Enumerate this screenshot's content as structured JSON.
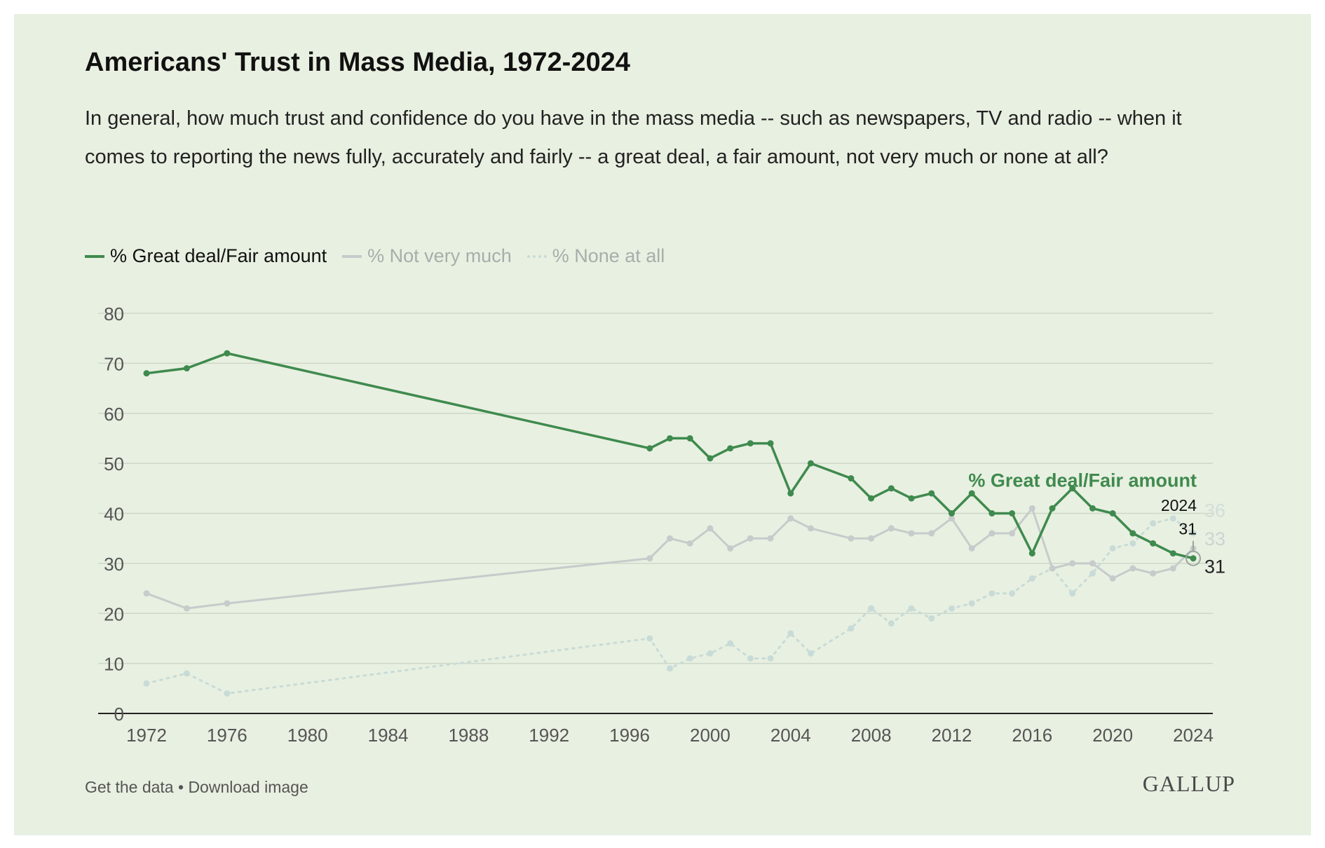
{
  "header": {
    "title": "Americans' Trust in Mass Media, 1972-2024",
    "subtitle": "In general, how much trust and confidence do you have in the mass media -- such as newspapers, TV and radio -- when it comes to reporting the news fully, accurately and fairly -- a great deal, a fair amount, not very much or none at all?"
  },
  "legend": {
    "items": [
      {
        "label": "% Great deal/Fair amount"
      },
      {
        "label": "% Not very much"
      },
      {
        "label": "% None at all"
      }
    ]
  },
  "footer": {
    "get_data": "Get the data",
    "separator": " • ",
    "download": "Download image",
    "logo": "GALLUP"
  },
  "colors": {
    "background": "#e8f0e1",
    "great_deal": "#3f8a4e",
    "not_very_much": "#c6cbcb",
    "none_at_all": "#c8dbd7",
    "grid": "#cdd7c8"
  },
  "chart_data": {
    "type": "line",
    "title": "Americans' Trust in Mass Media, 1972-2024",
    "xlim": [
      1972,
      2024
    ],
    "ylim": [
      0,
      80
    ],
    "x_ticks": [
      1972,
      1976,
      1980,
      1984,
      1988,
      1992,
      1996,
      2000,
      2004,
      2008,
      2012,
      2016,
      2020,
      2024
    ],
    "y_ticks": [
      0,
      10,
      20,
      30,
      40,
      50,
      60,
      70,
      80
    ],
    "grid": true,
    "legend": "top-left",
    "series": [
      {
        "name": "% Great deal/Fair amount",
        "style": "solid",
        "x": [
          1972,
          1974,
          1976,
          1997,
          1998,
          1999,
          2000,
          2001,
          2002,
          2003,
          2004,
          2005,
          2007,
          2008,
          2009,
          2010,
          2011,
          2012,
          2013,
          2014,
          2015,
          2016,
          2017,
          2018,
          2019,
          2020,
          2021,
          2022,
          2023,
          2024
        ],
        "values": [
          68,
          69,
          72,
          53,
          55,
          55,
          51,
          53,
          54,
          54,
          44,
          50,
          47,
          43,
          45,
          43,
          44,
          40,
          44,
          40,
          40,
          32,
          41,
          45,
          41,
          40,
          36,
          34,
          32,
          31
        ]
      },
      {
        "name": "% Not very much",
        "style": "solid",
        "x": [
          1972,
          1974,
          1976,
          1997,
          1998,
          1999,
          2000,
          2001,
          2002,
          2003,
          2004,
          2005,
          2007,
          2008,
          2009,
          2010,
          2011,
          2012,
          2013,
          2014,
          2015,
          2016,
          2017,
          2018,
          2019,
          2020,
          2021,
          2022,
          2023,
          2024
        ],
        "values": [
          24,
          21,
          22,
          31,
          35,
          34,
          37,
          33,
          35,
          35,
          39,
          37,
          35,
          35,
          37,
          36,
          36,
          39,
          33,
          36,
          36,
          41,
          29,
          30,
          30,
          27,
          29,
          28,
          29,
          33
        ]
      },
      {
        "name": "% None at all",
        "style": "dotted",
        "x": [
          1972,
          1974,
          1976,
          1997,
          1998,
          1999,
          2000,
          2001,
          2002,
          2003,
          2004,
          2005,
          2007,
          2008,
          2009,
          2010,
          2011,
          2012,
          2013,
          2014,
          2015,
          2016,
          2017,
          2018,
          2019,
          2020,
          2021,
          2022,
          2023,
          2024
        ],
        "values": [
          6,
          8,
          4,
          15,
          9,
          11,
          12,
          14,
          11,
          11,
          16,
          12,
          17,
          21,
          18,
          21,
          19,
          21,
          22,
          24,
          24,
          27,
          29,
          24,
          28,
          33,
          34,
          38,
          39,
          36
        ]
      }
    ],
    "annotations": {
      "series_label": "% Great deal/Fair amount",
      "highlight_year": "2024",
      "highlight_value": "31",
      "end_labels": [
        "36",
        "33",
        "31"
      ]
    }
  }
}
